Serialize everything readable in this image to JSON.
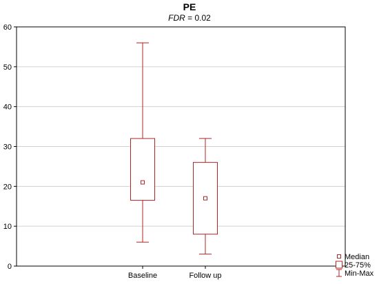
{
  "chart_data": {
    "type": "boxplot",
    "title": "PE",
    "subtitle": {
      "stat_name": "FDR",
      "stat_text": " = 0.02"
    },
    "categories": [
      "Baseline",
      "Follow up"
    ],
    "boxes": [
      {
        "category": "Baseline",
        "min": 6,
        "q1": 16.5,
        "median": 21,
        "q3": 32,
        "max": 56
      },
      {
        "category": "Follow up",
        "min": 3,
        "q1": 8,
        "median": 17,
        "q3": 26,
        "max": 32
      }
    ],
    "ylim": [
      0,
      60
    ],
    "yticks": [
      0,
      10,
      20,
      30,
      40,
      50,
      60
    ],
    "grid": true,
    "legend": {
      "position": "bottom-right",
      "items": [
        {
          "label": "Median",
          "symbol": "square-marker"
        },
        {
          "label": "25-75%",
          "symbol": "box"
        },
        {
          "label": "Min-Max",
          "symbol": "whisker"
        }
      ]
    },
    "colors": {
      "series": "#b22222",
      "grid": "#d0d0d0",
      "axis": "#000000"
    }
  }
}
